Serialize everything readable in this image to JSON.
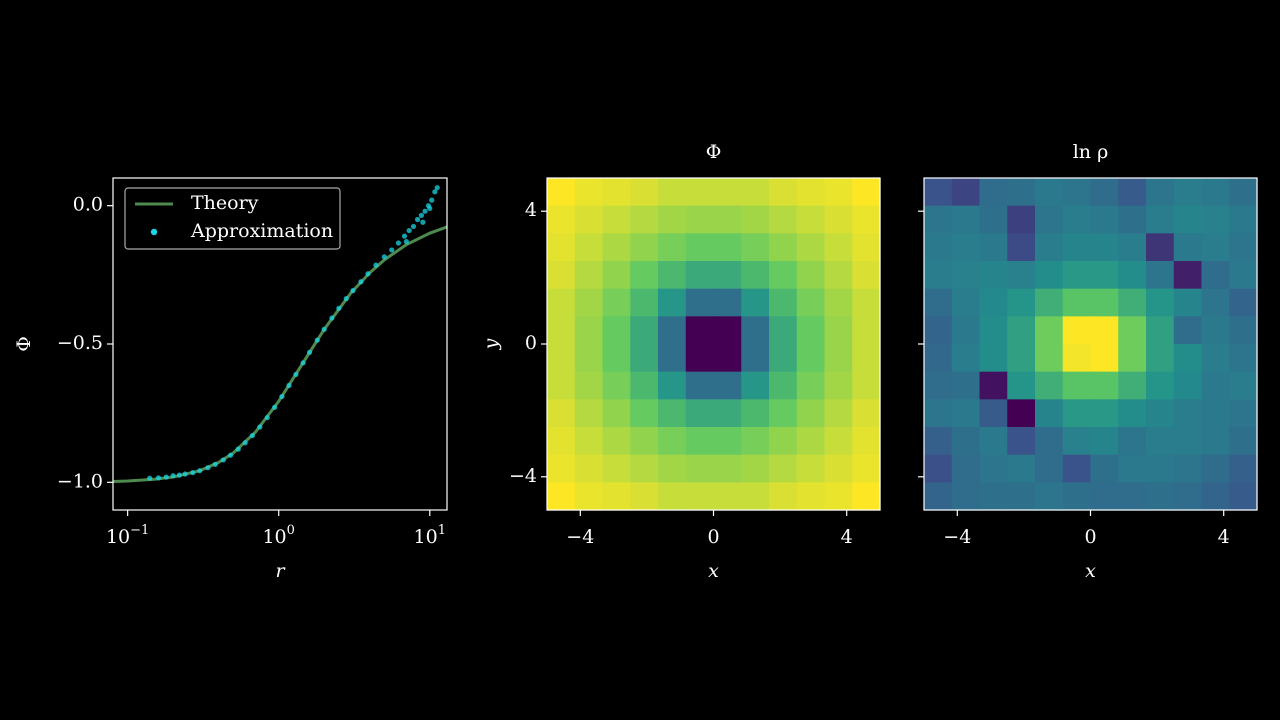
{
  "chart_data": [
    {
      "type": "line",
      "xlabel": "r",
      "ylabel": "Φ",
      "xscale": "log",
      "xlim": [
        0.08,
        13
      ],
      "ylim": [
        -1.1,
        0.1
      ],
      "xticks": [
        {
          "value": 0.1,
          "label": "10",
          "exponent": "−1"
        },
        {
          "value": 1,
          "label": "10",
          "exponent": "0"
        },
        {
          "value": 10,
          "label": "10",
          "exponent": "1"
        }
      ],
      "yticks": [
        {
          "value": 0,
          "label": "0.0"
        },
        {
          "value": -0.5,
          "label": "−0.5"
        },
        {
          "value": -1,
          "label": "−1.0"
        }
      ],
      "legend": "upper left",
      "series": [
        {
          "name": "Theory",
          "type": "line",
          "color": "#4e8a4e",
          "x": [
            0.08,
            0.1,
            0.15,
            0.2,
            0.3,
            0.4,
            0.5,
            0.7,
            1,
            1.5,
            2,
            3,
            4,
            5,
            7,
            10,
            13
          ],
          "y": [
            -0.997,
            -0.995,
            -0.989,
            -0.981,
            -0.958,
            -0.928,
            -0.894,
            -0.819,
            -0.707,
            -0.555,
            -0.447,
            -0.316,
            -0.243,
            -0.196,
            -0.141,
            -0.0995,
            -0.0767
          ]
        },
        {
          "name": "Approximation",
          "type": "scatter",
          "color": "#1ad6e6",
          "x": [
            0.14,
            0.16,
            0.18,
            0.2,
            0.22,
            0.24,
            0.27,
            0.3,
            0.34,
            0.38,
            0.43,
            0.48,
            0.54,
            0.6,
            0.67,
            0.75,
            0.84,
            0.94,
            1.05,
            1.17,
            1.3,
            1.45,
            1.6,
            1.8,
            2.0,
            2.25,
            2.5,
            2.8,
            3.1,
            3.5,
            3.9,
            4.4,
            5.0,
            5.6,
            6.2,
            6.8,
            7.3,
            7.8,
            8.3,
            8.8,
            9.3,
            9.8,
            10.3,
            10.8,
            11.2,
            9.0,
            7.0,
            10.0
          ],
          "y": [
            -0.985,
            -0.984,
            -0.981,
            -0.976,
            -0.974,
            -0.97,
            -0.965,
            -0.958,
            -0.947,
            -0.935,
            -0.919,
            -0.902,
            -0.88,
            -0.857,
            -0.831,
            -0.8,
            -0.766,
            -0.729,
            -0.69,
            -0.65,
            -0.61,
            -0.568,
            -0.53,
            -0.486,
            -0.447,
            -0.406,
            -0.371,
            -0.336,
            -0.307,
            -0.275,
            -0.246,
            -0.215,
            -0.185,
            -0.16,
            -0.135,
            -0.11,
            -0.09,
            -0.075,
            -0.05,
            -0.035,
            -0.02,
            0.0,
            0.02,
            0.05,
            0.065,
            -0.06,
            -0.13,
            -0.01
          ]
        }
      ]
    },
    {
      "type": "heatmap",
      "title": "Φ",
      "xlabel": "x",
      "ylabel": "y",
      "colormap": "viridis",
      "xlim": [
        -5,
        5
      ],
      "ylim": [
        -5,
        5
      ],
      "xticks": [
        {
          "value": -4,
          "label": "−4"
        },
        0,
        4
      ],
      "yticks": [
        {
          "value": -4,
          "label": "−4"
        },
        0,
        4
      ],
      "values": [
        [
          -0.15,
          -0.17,
          -0.18,
          -0.19,
          -0.21,
          -0.21,
          -0.21,
          -0.21,
          -0.19,
          -0.18,
          -0.17,
          -0.15
        ],
        [
          -0.17,
          -0.19,
          -0.21,
          -0.23,
          -0.25,
          -0.26,
          -0.26,
          -0.25,
          -0.23,
          -0.21,
          -0.19,
          -0.17
        ],
        [
          -0.18,
          -0.21,
          -0.24,
          -0.27,
          -0.3,
          -0.32,
          -0.32,
          -0.3,
          -0.27,
          -0.24,
          -0.21,
          -0.18
        ],
        [
          -0.19,
          -0.23,
          -0.27,
          -0.32,
          -0.38,
          -0.43,
          -0.43,
          -0.38,
          -0.32,
          -0.27,
          -0.23,
          -0.19
        ],
        [
          -0.21,
          -0.25,
          -0.3,
          -0.38,
          -0.49,
          -0.6,
          -0.6,
          -0.49,
          -0.38,
          -0.3,
          -0.25,
          -0.21
        ],
        [
          -0.21,
          -0.26,
          -0.32,
          -0.43,
          -0.6,
          -0.86,
          -0.86,
          -0.6,
          -0.43,
          -0.32,
          -0.26,
          -0.21
        ],
        [
          -0.21,
          -0.26,
          -0.32,
          -0.43,
          -0.6,
          -0.86,
          -0.86,
          -0.6,
          -0.43,
          -0.32,
          -0.26,
          -0.21
        ],
        [
          -0.21,
          -0.25,
          -0.3,
          -0.38,
          -0.49,
          -0.6,
          -0.6,
          -0.49,
          -0.38,
          -0.3,
          -0.25,
          -0.21
        ],
        [
          -0.19,
          -0.23,
          -0.27,
          -0.32,
          -0.38,
          -0.43,
          -0.43,
          -0.38,
          -0.32,
          -0.27,
          -0.23,
          -0.19
        ],
        [
          -0.18,
          -0.21,
          -0.24,
          -0.27,
          -0.3,
          -0.32,
          -0.32,
          -0.3,
          -0.27,
          -0.24,
          -0.21,
          -0.18
        ],
        [
          -0.17,
          -0.19,
          -0.21,
          -0.23,
          -0.25,
          -0.26,
          -0.26,
          -0.25,
          -0.23,
          -0.21,
          -0.19,
          -0.17
        ],
        [
          -0.15,
          -0.17,
          -0.18,
          -0.19,
          -0.21,
          -0.21,
          -0.21,
          -0.21,
          -0.19,
          -0.18,
          -0.17,
          -0.15
        ]
      ]
    },
    {
      "type": "heatmap",
      "title": "ln ρ",
      "xlabel": "x",
      "colormap": "viridis",
      "xlim": [
        -5,
        5
      ],
      "ylim": [
        -5,
        5
      ],
      "xticks": [
        {
          "value": -4,
          "label": "−4"
        },
        0,
        4
      ],
      "yticks": [
        -4,
        0,
        4
      ],
      "ytick_labels": false,
      "values": [
        [
          -6.2,
          -6.5,
          -5.6,
          -5.5,
          -5.3,
          -5.4,
          -5.6,
          -6.0,
          -5.4,
          -5.2,
          -5.3,
          -5.5
        ],
        [
          -5.4,
          -5.3,
          -5.5,
          -6.6,
          -5.4,
          -5.2,
          -5.3,
          -5.5,
          -5.2,
          -5.0,
          -5.1,
          -5.3
        ],
        [
          -5.3,
          -5.2,
          -5.3,
          -6.4,
          -5.2,
          -5.0,
          -5.0,
          -5.2,
          -6.8,
          -5.3,
          -5.2,
          -5.4
        ],
        [
          -5.2,
          -5.1,
          -5.0,
          -5.1,
          -4.8,
          -4.5,
          -4.5,
          -4.8,
          -5.4,
          -7.2,
          -5.6,
          -5.3
        ],
        [
          -5.6,
          -5.2,
          -4.9,
          -4.6,
          -3.9,
          -3.3,
          -3.3,
          -3.9,
          -4.6,
          -5.0,
          -5.4,
          -5.8
        ],
        [
          -5.8,
          -5.3,
          -4.8,
          -4.3,
          -3.0,
          -1.6,
          -1.6,
          -3.0,
          -4.3,
          -5.6,
          -5.3,
          -5.5
        ],
        [
          -5.7,
          -5.2,
          -4.8,
          -4.3,
          -3.0,
          -1.7,
          -1.6,
          -3.0,
          -4.3,
          -4.8,
          -5.2,
          -5.4
        ],
        [
          -5.6,
          -5.5,
          -7.5,
          -4.6,
          -3.9,
          -3.3,
          -3.3,
          -3.9,
          -4.6,
          -4.9,
          -5.3,
          -5.2
        ],
        [
          -5.4,
          -5.3,
          -6.0,
          -7.8,
          -5.0,
          -4.5,
          -4.5,
          -4.8,
          -5.0,
          -5.2,
          -5.3,
          -5.4
        ],
        [
          -5.9,
          -5.5,
          -5.3,
          -6.2,
          -5.6,
          -5.1,
          -5.0,
          -5.4,
          -5.2,
          -5.2,
          -5.3,
          -5.5
        ],
        [
          -6.3,
          -5.6,
          -5.4,
          -5.3,
          -5.6,
          -6.2,
          -5.5,
          -5.3,
          -5.3,
          -5.4,
          -5.6,
          -5.9
        ],
        [
          -5.8,
          -5.6,
          -5.5,
          -5.5,
          -5.4,
          -5.5,
          -5.6,
          -5.6,
          -5.5,
          -5.6,
          -5.8,
          -6.0
        ]
      ]
    }
  ]
}
